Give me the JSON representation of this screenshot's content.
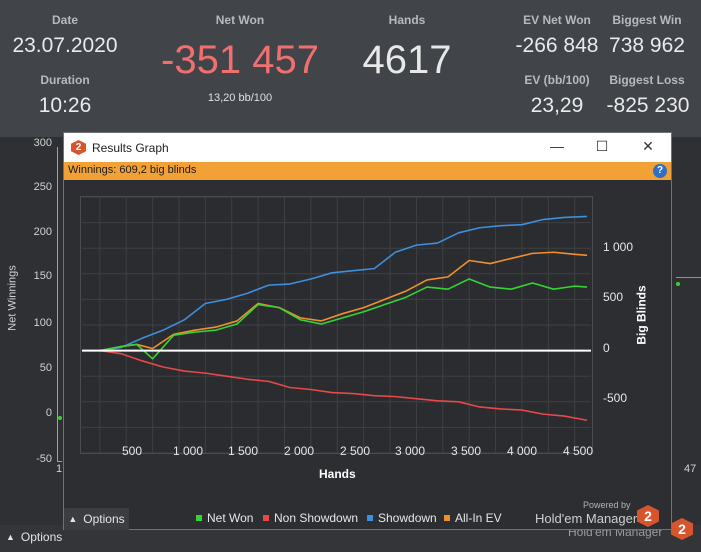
{
  "stats": {
    "date_label": "Date",
    "date_value": "23.07.2020",
    "duration_label": "Duration",
    "duration_value": "10:26",
    "net_won_label": "Net Won",
    "net_won_value": "-351 457",
    "net_won_sub": "13,20 bb/100",
    "hands_label": "Hands",
    "hands_value": "4617",
    "ev_net_won_label": "EV Net Won",
    "ev_net_won_value": "-266 848",
    "ev_bb_label": "EV (bb/100)",
    "ev_bb_value": "23,29",
    "biggest_win_label": "Biggest Win",
    "biggest_win_value": "738 962",
    "biggest_loss_label": "Biggest Loss",
    "biggest_loss_value": "-825 230",
    "net_won_color": "#f07070"
  },
  "background_chart": {
    "y_label": "Net Winnings",
    "y_ticks": [
      "300",
      "250",
      "200",
      "150",
      "100",
      "50",
      "0",
      "-50"
    ],
    "x_start": "1",
    "x_end": "47"
  },
  "bottom_bar": {
    "options_label": "Options",
    "brand": "Hold'em Manager",
    "logo": "2"
  },
  "popup": {
    "title": "Results Graph",
    "logo": "2",
    "controls": {
      "minimize": "—",
      "maximize": "☐",
      "close": "✕"
    },
    "winnings_text": "Winnings: 609,2 big blinds",
    "help": "?",
    "options_label": "Options",
    "powered_by": "Powered by",
    "brand": "Hold'em Manager",
    "brand_logo": "2"
  },
  "chart_data": {
    "type": "line",
    "xlabel": "Hands",
    "ylabel": "Big Blinds",
    "x_ticks": [
      "500",
      "1 000",
      "1 500",
      "2 000",
      "2 500",
      "3 000",
      "3 500",
      "4 000",
      "4 500"
    ],
    "y_ticks": [
      "1 000",
      "500",
      "0",
      "-500"
    ],
    "xlim": [
      0,
      4617
    ],
    "ylim": [
      -1000,
      1500
    ],
    "grid": true,
    "legend_position": "bottom",
    "series": [
      {
        "name": "Net Won",
        "color": "#35d435",
        "x": [
          0,
          200,
          350,
          500,
          700,
          900,
          1100,
          1300,
          1500,
          1700,
          1900,
          2100,
          2300,
          2500,
          2700,
          2900,
          3100,
          3300,
          3500,
          3700,
          3900,
          4100,
          4300,
          4500,
          4617
        ],
        "y": [
          0,
          40,
          60,
          -80,
          150,
          180,
          200,
          260,
          450,
          420,
          300,
          260,
          320,
          380,
          450,
          520,
          620,
          600,
          700,
          620,
          600,
          660,
          600,
          630,
          620
        ]
      },
      {
        "name": "Non Showdown",
        "color": "#e84848",
        "x": [
          0,
          200,
          400,
          600,
          800,
          1000,
          1200,
          1400,
          1600,
          1800,
          2000,
          2200,
          2400,
          2600,
          2800,
          3000,
          3200,
          3400,
          3600,
          3800,
          4000,
          4200,
          4400,
          4617
        ],
        "y": [
          0,
          -30,
          -100,
          -160,
          -200,
          -220,
          -250,
          -280,
          -300,
          -360,
          -380,
          -410,
          -420,
          -440,
          -450,
          -470,
          -490,
          -500,
          -550,
          -570,
          -580,
          -620,
          -640,
          -680
        ]
      },
      {
        "name": "Showdown",
        "color": "#3d8fe0",
        "x": [
          0,
          200,
          400,
          600,
          800,
          1000,
          1200,
          1400,
          1600,
          1800,
          2000,
          2200,
          2400,
          2600,
          2800,
          3000,
          3200,
          3400,
          3600,
          3800,
          4000,
          4200,
          4400,
          4617
        ],
        "y": [
          0,
          30,
          120,
          200,
          300,
          460,
          500,
          560,
          640,
          650,
          700,
          760,
          780,
          800,
          960,
          1030,
          1050,
          1150,
          1200,
          1220,
          1230,
          1280,
          1300,
          1310
        ]
      },
      {
        "name": "All-In EV",
        "color": "#f0902c",
        "x": [
          0,
          200,
          350,
          500,
          700,
          900,
          1100,
          1300,
          1500,
          1700,
          1900,
          2100,
          2300,
          2500,
          2700,
          2900,
          3100,
          3300,
          3500,
          3700,
          3900,
          4100,
          4300,
          4500,
          4617
        ],
        "y": [
          0,
          40,
          60,
          20,
          160,
          200,
          230,
          290,
          460,
          420,
          320,
          290,
          360,
          420,
          500,
          580,
          690,
          720,
          880,
          850,
          900,
          950,
          960,
          940,
          930
        ]
      }
    ]
  }
}
